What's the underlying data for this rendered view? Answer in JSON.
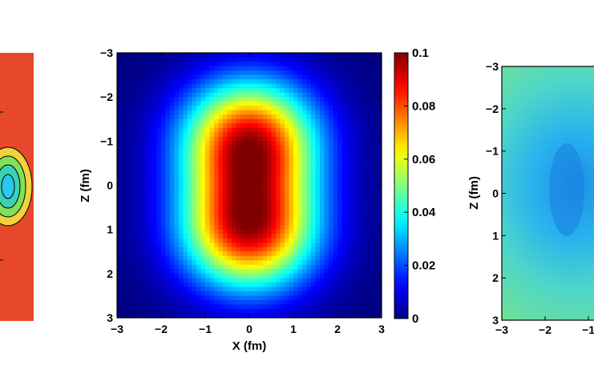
{
  "chart_data": [
    {
      "type": "heatmap",
      "description_role": "left panel, cropped at image edge",
      "features": [
        "contour rings centered near x=0"
      ],
      "colors": {
        "background": "#e8482a",
        "rings": [
          "#e8d43a",
          "#7fe05a",
          "#3ad0c8",
          "#20c0e0"
        ]
      }
    },
    {
      "type": "heatmap",
      "xlabel": "X (fm)",
      "ylabel": "Z (fm)",
      "x_ticks": [
        "−3",
        "−2",
        "−1",
        "0",
        "1",
        "2",
        "3"
      ],
      "y_ticks": [
        "−3",
        "−2",
        "−1",
        "0",
        "1",
        "2",
        "3"
      ],
      "xlim": [
        -3,
        3
      ],
      "ylim": [
        -3,
        3
      ],
      "y_axis_reversed": true,
      "colormap": "jet",
      "clim": [
        0,
        0.1
      ],
      "colorbar_ticks": [
        "0",
        "0.02",
        "0.04",
        "0.06",
        "0.08",
        "0.1"
      ],
      "colorbar_values": [
        0,
        0.02,
        0.04,
        0.06,
        0.08,
        0.1
      ],
      "peaks": [
        {
          "x": 0,
          "z": -1,
          "value": 0.1
        },
        {
          "x": 0,
          "z": 1,
          "value": 0.1
        }
      ]
    },
    {
      "type": "heatmap",
      "description_role": "right panel, cropped at image edge",
      "ylabel": "Z (fm)",
      "x_ticks": [
        "−3",
        "−2",
        "−1"
      ],
      "y_ticks": [
        "−3",
        "−2",
        "−1",
        "0",
        "1",
        "2",
        "3"
      ],
      "ylim": [
        -3,
        3
      ],
      "y_axis_reversed": true,
      "colors": {
        "background": "#6fe08a",
        "core": "#1e9ae8"
      }
    }
  ]
}
